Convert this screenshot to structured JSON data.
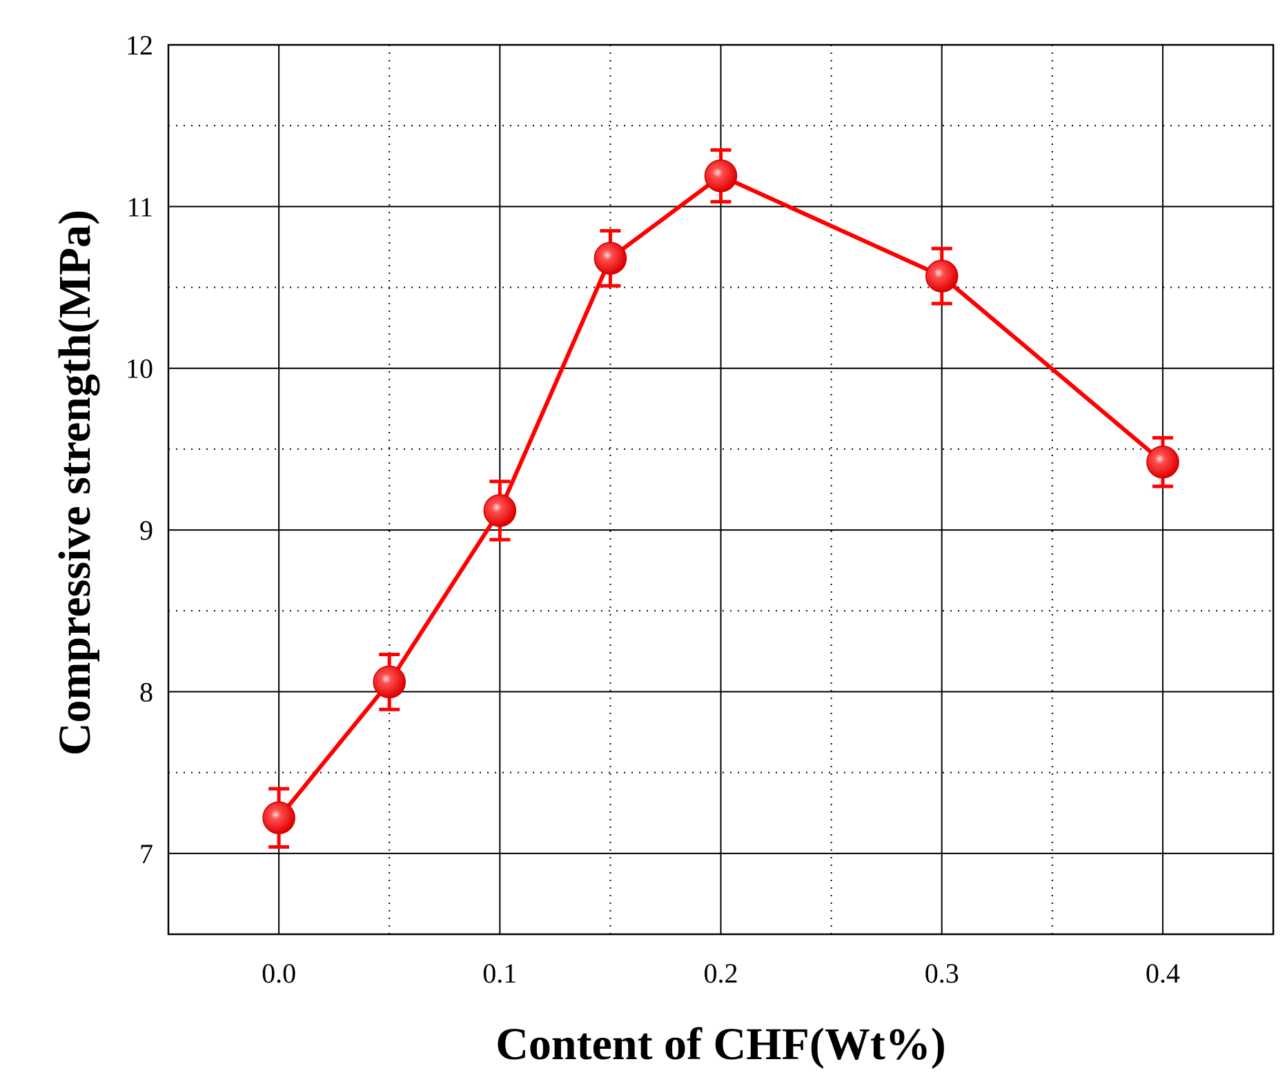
{
  "chart_data": {
    "type": "line",
    "title": "",
    "xlabel": "Content of CHF(Wt%)",
    "ylabel": "Compressive strength(MPa)",
    "xlim": [
      -0.05,
      0.45
    ],
    "ylim": [
      6.5,
      12
    ],
    "x_major_ticks": [
      0.0,
      0.1,
      0.2,
      0.3,
      0.4
    ],
    "x_tick_labels": [
      "0.0",
      "0.1",
      "0.2",
      "0.3",
      "0.4"
    ],
    "y_major_ticks": [
      7,
      8,
      9,
      10,
      11,
      12
    ],
    "y_tick_labels": [
      "7",
      "8",
      "9",
      "10",
      "11",
      "12"
    ],
    "grid": "on",
    "legend": "none",
    "series": [
      {
        "color": "#ff0000",
        "marker": "circle",
        "x": [
          0.0,
          0.05,
          0.1,
          0.15,
          0.2,
          0.3,
          0.4
        ],
        "y": [
          7.22,
          8.06,
          9.12,
          10.68,
          11.19,
          10.57,
          9.42
        ],
        "error": [
          0.18,
          0.17,
          0.18,
          0.17,
          0.16,
          0.17,
          0.15
        ]
      }
    ]
  }
}
